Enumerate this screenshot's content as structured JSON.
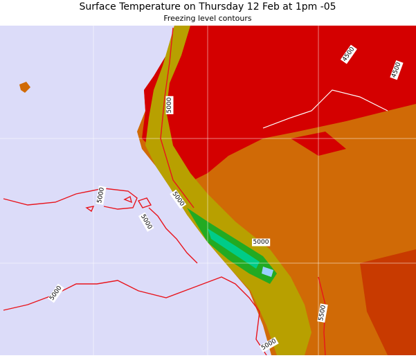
{
  "header": {
    "title": "Surface Temperature on Thursday 12 Feb at 1pm -05",
    "subtitle": "Freezing level contours"
  },
  "contour_labels": [
    "4500",
    "4500",
    "5000",
    "5000",
    "5000",
    "5000",
    "5000",
    "5000",
    "5500",
    "5000"
  ]
}
